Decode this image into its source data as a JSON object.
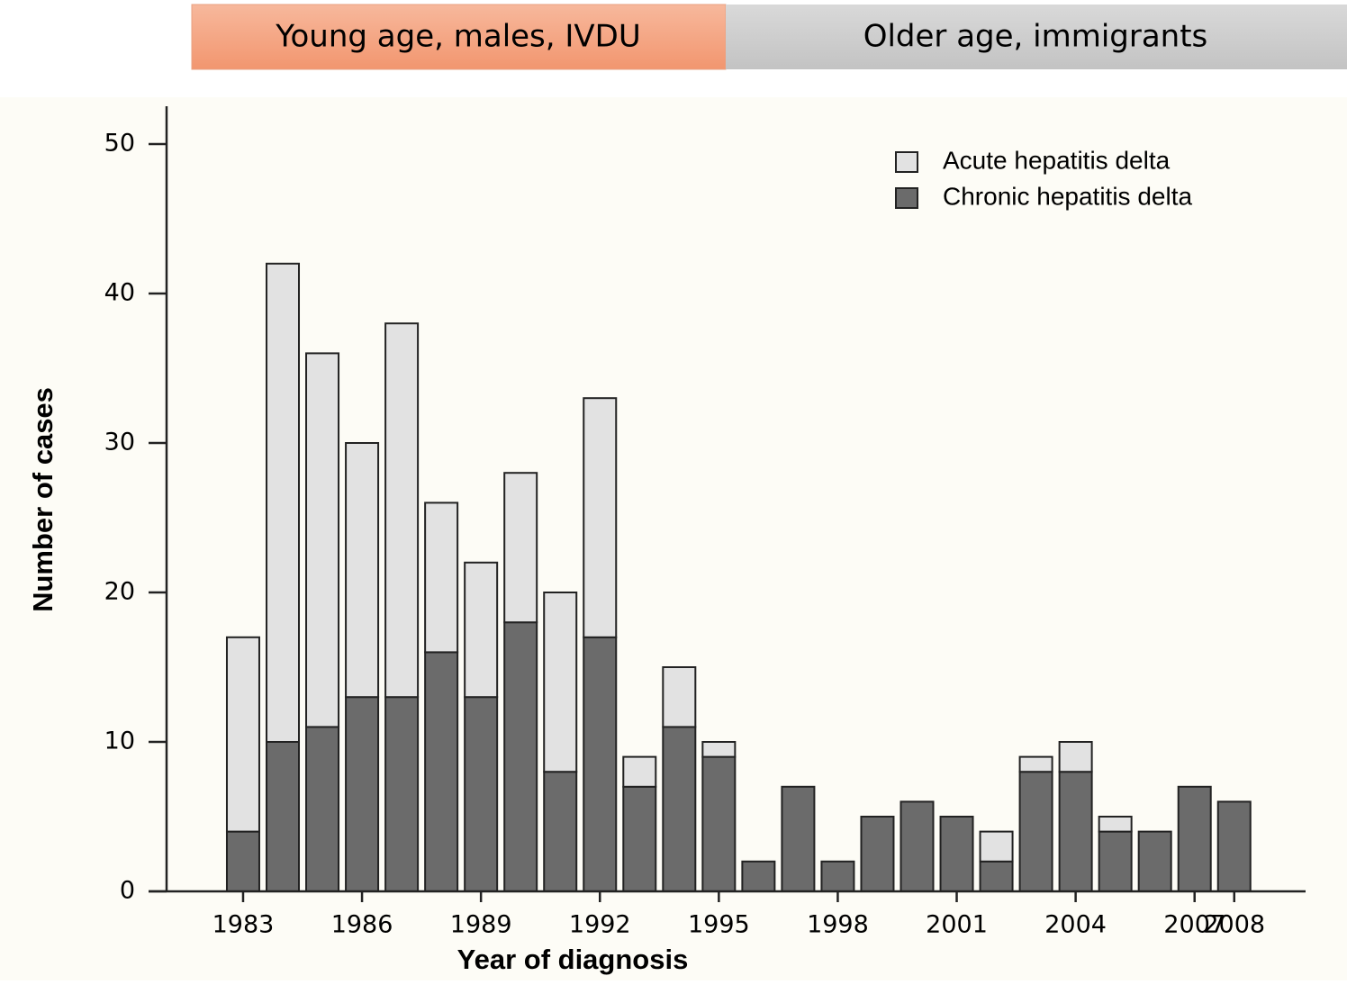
{
  "banner": {
    "left": "Young age, males, IVDU",
    "right": "Older age, immigrants"
  },
  "chart_data": {
    "type": "stacked_bar",
    "x": [
      1983,
      1984,
      1985,
      1986,
      1987,
      1988,
      1989,
      1990,
      1991,
      1992,
      1993,
      1994,
      1995,
      1996,
      1997,
      1998,
      1999,
      2000,
      2001,
      2002,
      2003,
      2004,
      2005,
      2006,
      2007,
      2008
    ],
    "series": [
      {
        "name": "Chronic hepatitis delta",
        "color": "#6b6b6b",
        "values": [
          4,
          10,
          11,
          13,
          13,
          16,
          13,
          18,
          8,
          17,
          7,
          11,
          9,
          2,
          7,
          2,
          5,
          6,
          5,
          2,
          8,
          8,
          4,
          4,
          7,
          6
        ]
      },
      {
        "name": "Acute hepatitis delta",
        "color": "#e2e2e2",
        "values": [
          13,
          32,
          25,
          17,
          25,
          10,
          9,
          10,
          12,
          16,
          2,
          4,
          1,
          0,
          0,
          0,
          0,
          0,
          0,
          2,
          1,
          2,
          1,
          0,
          0,
          0
        ]
      }
    ],
    "xlabel": "Year of diagnosis",
    "ylabel": "Number of cases",
    "xlim": [
      1981.07,
      2009.8
    ],
    "xticks": [
      1983,
      1986,
      1989,
      1992,
      1995,
      1998,
      2001,
      2004,
      2007,
      2008
    ],
    "ylim": [
      0,
      50
    ],
    "yticks": [
      0,
      10,
      20,
      30,
      40,
      50
    ],
    "legend": "upper right",
    "legend_order": [
      1,
      0
    ]
  }
}
